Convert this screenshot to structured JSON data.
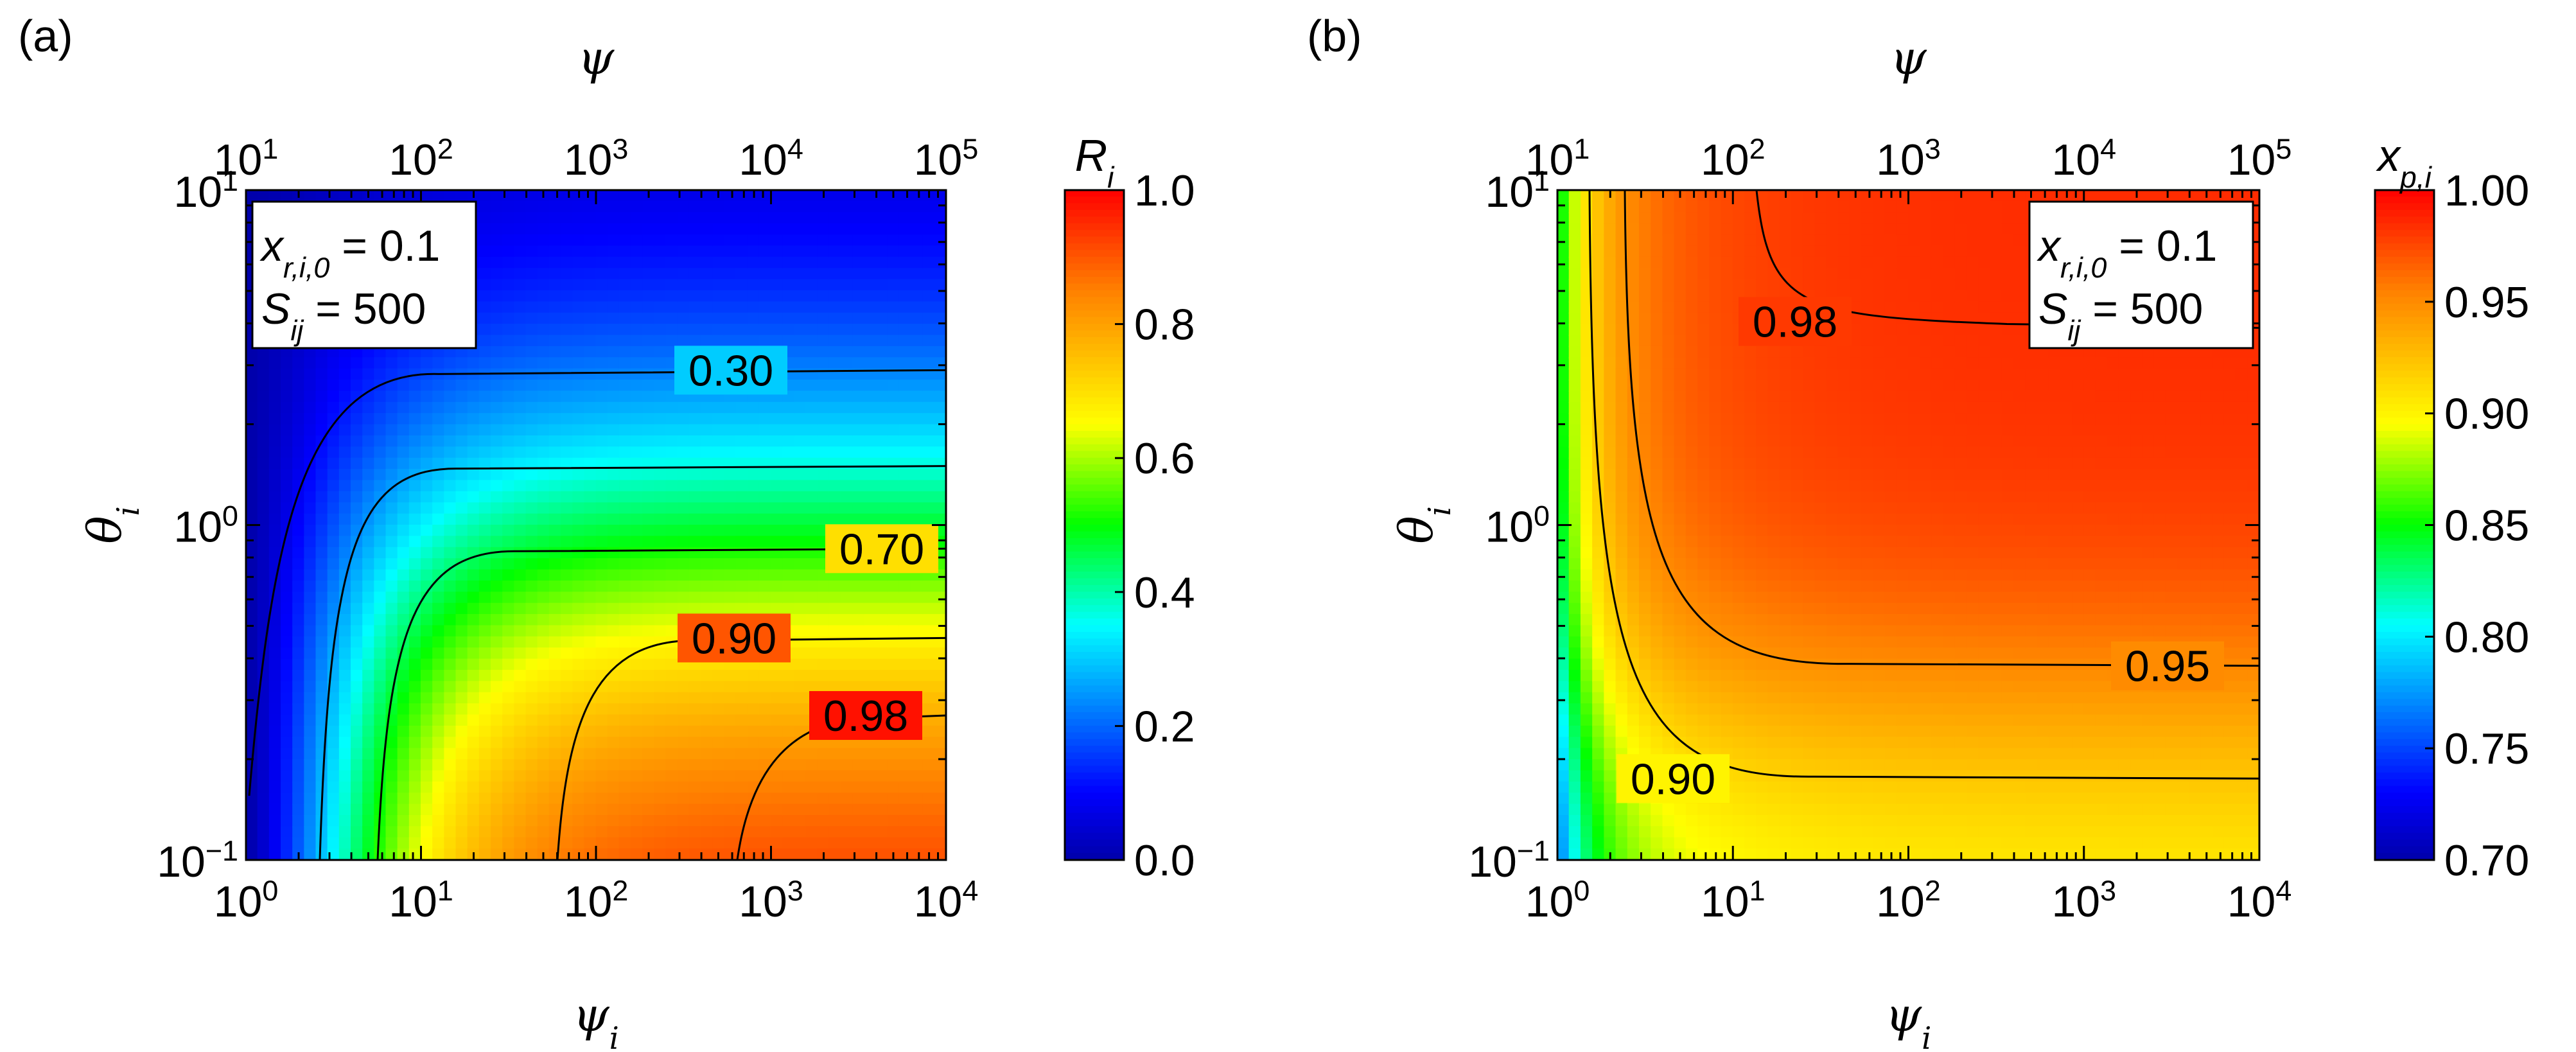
{
  "chart_data": [
    {
      "panel_label": "(a)",
      "type": "heatmap",
      "xlabel": "ψ",
      "xlabel_sub": "i",
      "ylabel": "θ",
      "ylabel_sub": "i",
      "top_axis_label": "ψ",
      "x_scale": "log",
      "xlim": [
        1,
        10000
      ],
      "y_scale": "log",
      "ylim": [
        0.1,
        10
      ],
      "top_axis": {
        "scale": "log",
        "range": [
          10,
          100000
        ]
      },
      "x_ticks": [
        {
          "base": "10",
          "exp": "0"
        },
        {
          "base": "10",
          "exp": "1"
        },
        {
          "base": "10",
          "exp": "2"
        },
        {
          "base": "10",
          "exp": "3"
        },
        {
          "base": "10",
          "exp": "4"
        }
      ],
      "top_ticks": [
        {
          "base": "10",
          "exp": "1"
        },
        {
          "base": "10",
          "exp": "2"
        },
        {
          "base": "10",
          "exp": "3"
        },
        {
          "base": "10",
          "exp": "4"
        },
        {
          "base": "10",
          "exp": "5"
        }
      ],
      "y_ticks": [
        {
          "base": "10",
          "exp": "−1"
        },
        {
          "base": "10",
          "exp": "0"
        },
        {
          "base": "10",
          "exp": "1"
        }
      ],
      "colorbar": {
        "label": "R",
        "label_sub": "i",
        "range": [
          0.0,
          1.0
        ],
        "ticks": [
          "0.0",
          "0.2",
          "0.4",
          "0.6",
          "0.8",
          "1.0"
        ]
      },
      "annotation": {
        "line1_base": "x",
        "line1_sub": "r,i,0",
        "line1_rest": " = 0.1",
        "line2_base": "S",
        "line2_sub": "ij",
        "line2_rest": " = 500",
        "position": "top-left"
      },
      "contours": [
        {
          "level": 0.3,
          "label": "0.30",
          "y_plateau": 2.9
        },
        {
          "level": 0.5,
          "label": "",
          "y_plateau": 1.5
        },
        {
          "level": 0.7,
          "label": "0.70",
          "y_plateau": 0.85
        },
        {
          "level": 0.9,
          "label": "0.90",
          "y_plateau": 0.46
        },
        {
          "level": 0.98,
          "label": "0.98",
          "y_plateau": 0.27
        }
      ]
    },
    {
      "panel_label": "(b)",
      "type": "heatmap",
      "xlabel": "ψ",
      "xlabel_sub": "i",
      "ylabel": "θ",
      "ylabel_sub": "i",
      "top_axis_label": "ψ",
      "x_scale": "log",
      "xlim": [
        1,
        10000
      ],
      "y_scale": "log",
      "ylim": [
        0.1,
        10
      ],
      "top_axis": {
        "scale": "log",
        "range": [
          10,
          100000
        ]
      },
      "x_ticks": [
        {
          "base": "10",
          "exp": "0"
        },
        {
          "base": "10",
          "exp": "1"
        },
        {
          "base": "10",
          "exp": "2"
        },
        {
          "base": "10",
          "exp": "3"
        },
        {
          "base": "10",
          "exp": "4"
        }
      ],
      "top_ticks": [
        {
          "base": "10",
          "exp": "1"
        },
        {
          "base": "10",
          "exp": "2"
        },
        {
          "base": "10",
          "exp": "3"
        },
        {
          "base": "10",
          "exp": "4"
        },
        {
          "base": "10",
          "exp": "5"
        }
      ],
      "y_ticks": [
        {
          "base": "10",
          "exp": "−1"
        },
        {
          "base": "10",
          "exp": "0"
        },
        {
          "base": "10",
          "exp": "1"
        }
      ],
      "colorbar": {
        "label": "x",
        "label_sub": "p,i",
        "range": [
          0.7,
          1.0
        ],
        "ticks": [
          "0.70",
          "0.75",
          "0.80",
          "0.85",
          "0.90",
          "0.95",
          "1.00"
        ]
      },
      "annotation": {
        "line1_base": "x",
        "line1_sub": "r,i,0",
        "line1_rest": " = 0.1",
        "line2_base": "S",
        "line2_sub": "ij",
        "line2_rest": " = 500",
        "position": "top-right"
      },
      "contours": [
        {
          "level": 0.9,
          "label": "0.90",
          "y_plateau": 0.175
        },
        {
          "level": 0.95,
          "label": "0.95",
          "y_plateau": 0.38
        },
        {
          "level": 0.98,
          "label": "0.98",
          "y_plateau": 4.2
        }
      ]
    }
  ]
}
